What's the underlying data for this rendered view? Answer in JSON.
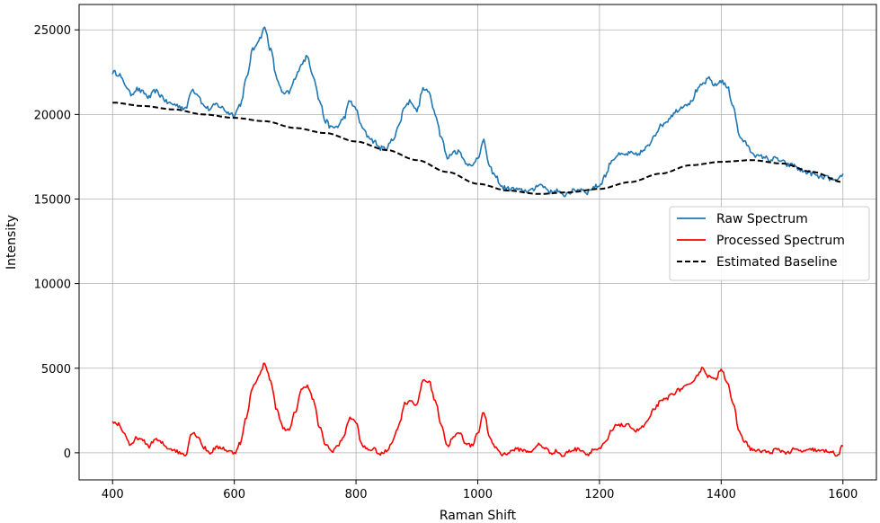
{
  "chart_data": {
    "type": "line",
    "title": "",
    "xlabel": "Raman Shift",
    "ylabel": "Intensity",
    "xlim": [
      345,
      1655
    ],
    "ylim": [
      -1600,
      26500
    ],
    "xticks": [
      400,
      600,
      800,
      1000,
      1200,
      1400,
      1600
    ],
    "yticks": [
      0,
      5000,
      10000,
      15000,
      20000,
      25000
    ],
    "grid": true,
    "legend_position": "center-right",
    "series": [
      {
        "name": "Raw Spectrum",
        "color": "#1f77b4",
        "style": "solid",
        "x": [
          400,
          410,
          420,
          430,
          440,
          450,
          460,
          470,
          480,
          490,
          500,
          510,
          520,
          530,
          540,
          550,
          560,
          570,
          580,
          590,
          600,
          610,
          620,
          630,
          640,
          650,
          660,
          670,
          680,
          690,
          700,
          710,
          720,
          730,
          740,
          750,
          760,
          770,
          780,
          790,
          800,
          810,
          820,
          830,
          840,
          850,
          860,
          870,
          880,
          890,
          900,
          910,
          920,
          930,
          940,
          950,
          960,
          970,
          980,
          990,
          1000,
          1010,
          1020,
          1030,
          1040,
          1050,
          1060,
          1070,
          1080,
          1090,
          1100,
          1110,
          1120,
          1130,
          1140,
          1150,
          1160,
          1170,
          1180,
          1190,
          1200,
          1210,
          1220,
          1230,
          1240,
          1250,
          1260,
          1270,
          1280,
          1290,
          1300,
          1310,
          1320,
          1330,
          1340,
          1350,
          1360,
          1370,
          1380,
          1390,
          1400,
          1410,
          1420,
          1430,
          1440,
          1450,
          1460,
          1470,
          1480,
          1490,
          1500,
          1510,
          1520,
          1530,
          1540,
          1550,
          1560,
          1570,
          1580,
          1590,
          1600
        ],
        "y": [
          22500,
          22400,
          21800,
          21200,
          21500,
          21300,
          21000,
          21400,
          21100,
          20700,
          20600,
          20500,
          20300,
          21500,
          21200,
          20500,
          20300,
          20600,
          20400,
          20100,
          20000,
          20600,
          22100,
          23800,
          24400,
          25100,
          23800,
          22100,
          21200,
          21300,
          22100,
          23000,
          23400,
          22300,
          20800,
          19600,
          19200,
          19300,
          19800,
          20800,
          20300,
          19200,
          18700,
          18400,
          18000,
          18000,
          18500,
          19300,
          20500,
          20800,
          20200,
          21500,
          21300,
          20100,
          18700,
          17400,
          17800,
          17800,
          17200,
          16900,
          17500,
          18400,
          16800,
          16300,
          15700,
          15600,
          15600,
          15500,
          15500,
          15500,
          15900,
          15700,
          15400,
          15500,
          15200,
          15400,
          15500,
          15600,
          15400,
          15700,
          15800,
          16400,
          17300,
          17600,
          17600,
          17700,
          17600,
          17800,
          18100,
          18800,
          19300,
          19600,
          20000,
          20300,
          20600,
          20700,
          21400,
          21800,
          22100,
          21700,
          22000,
          21600,
          20500,
          18700,
          18300,
          17800,
          17500,
          17500,
          17300,
          17400,
          17200,
          17000,
          17000,
          16700,
          16600,
          16500,
          16300,
          16300,
          16200,
          16000,
          16500
        ],
        "noise": 140
      },
      {
        "name": "Processed Spectrum",
        "color": "#ff0000",
        "style": "solid",
        "x": [
          400,
          410,
          420,
          430,
          440,
          450,
          460,
          470,
          480,
          490,
          500,
          510,
          520,
          530,
          540,
          550,
          560,
          570,
          580,
          590,
          600,
          610,
          620,
          630,
          640,
          650,
          660,
          670,
          680,
          690,
          700,
          710,
          720,
          730,
          740,
          750,
          760,
          770,
          780,
          790,
          800,
          810,
          820,
          830,
          840,
          850,
          860,
          870,
          880,
          890,
          900,
          910,
          920,
          930,
          940,
          950,
          960,
          970,
          980,
          990,
          1000,
          1010,
          1020,
          1030,
          1040,
          1050,
          1060,
          1070,
          1080,
          1090,
          1100,
          1110,
          1120,
          1130,
          1140,
          1150,
          1160,
          1170,
          1180,
          1190,
          1200,
          1210,
          1220,
          1230,
          1240,
          1250,
          1260,
          1270,
          1280,
          1290,
          1300,
          1310,
          1320,
          1330,
          1340,
          1350,
          1360,
          1370,
          1380,
          1390,
          1400,
          1410,
          1420,
          1430,
          1440,
          1450,
          1460,
          1470,
          1480,
          1490,
          1500,
          1510,
          1520,
          1530,
          1540,
          1550,
          1560,
          1570,
          1580,
          1590,
          1600
        ],
        "y": [
          1800,
          1700,
          1100,
          400,
          900,
          700,
          400,
          800,
          600,
          300,
          200,
          0,
          -100,
          1200,
          1000,
          300,
          0,
          300,
          300,
          100,
          0,
          600,
          2100,
          3900,
          4500,
          5300,
          4200,
          2500,
          1500,
          1300,
          2400,
          3700,
          4000,
          3100,
          1500,
          500,
          100,
          400,
          1000,
          2100,
          1800,
          400,
          200,
          200,
          -100,
          100,
          700,
          1600,
          2900,
          3100,
          2800,
          4300,
          4200,
          3100,
          1700,
          400,
          900,
          1200,
          600,
          400,
          1200,
          2400,
          800,
          300,
          -100,
          0,
          200,
          200,
          100,
          100,
          500,
          300,
          0,
          100,
          -200,
          100,
          200,
          200,
          -100,
          200,
          200,
          600,
          1300,
          1700,
          1600,
          1600,
          1300,
          1500,
          1900,
          2600,
          3000,
          3200,
          3500,
          3700,
          3900,
          4000,
          4600,
          5000,
          4500,
          4300,
          5000,
          4200,
          2800,
          1200,
          600,
          200,
          100,
          100,
          0,
          200,
          100,
          0,
          200,
          100,
          100,
          200,
          100,
          100,
          100,
          -200,
          400
        ],
        "noise": 110
      },
      {
        "name": "Estimated Baseline",
        "color": "#000000",
        "style": "dashed",
        "x": [
          400,
          450,
          500,
          550,
          600,
          650,
          700,
          750,
          800,
          850,
          900,
          950,
          1000,
          1050,
          1100,
          1150,
          1200,
          1250,
          1300,
          1350,
          1400,
          1450,
          1500,
          1550,
          1600
        ],
        "y": [
          20700,
          20500,
          20300,
          20000,
          19800,
          19600,
          19200,
          18900,
          18400,
          17900,
          17300,
          16600,
          15900,
          15500,
          15300,
          15400,
          15600,
          16000,
          16500,
          17000,
          17200,
          17300,
          17100,
          16600,
          16000
        ],
        "noise": 0
      }
    ]
  }
}
